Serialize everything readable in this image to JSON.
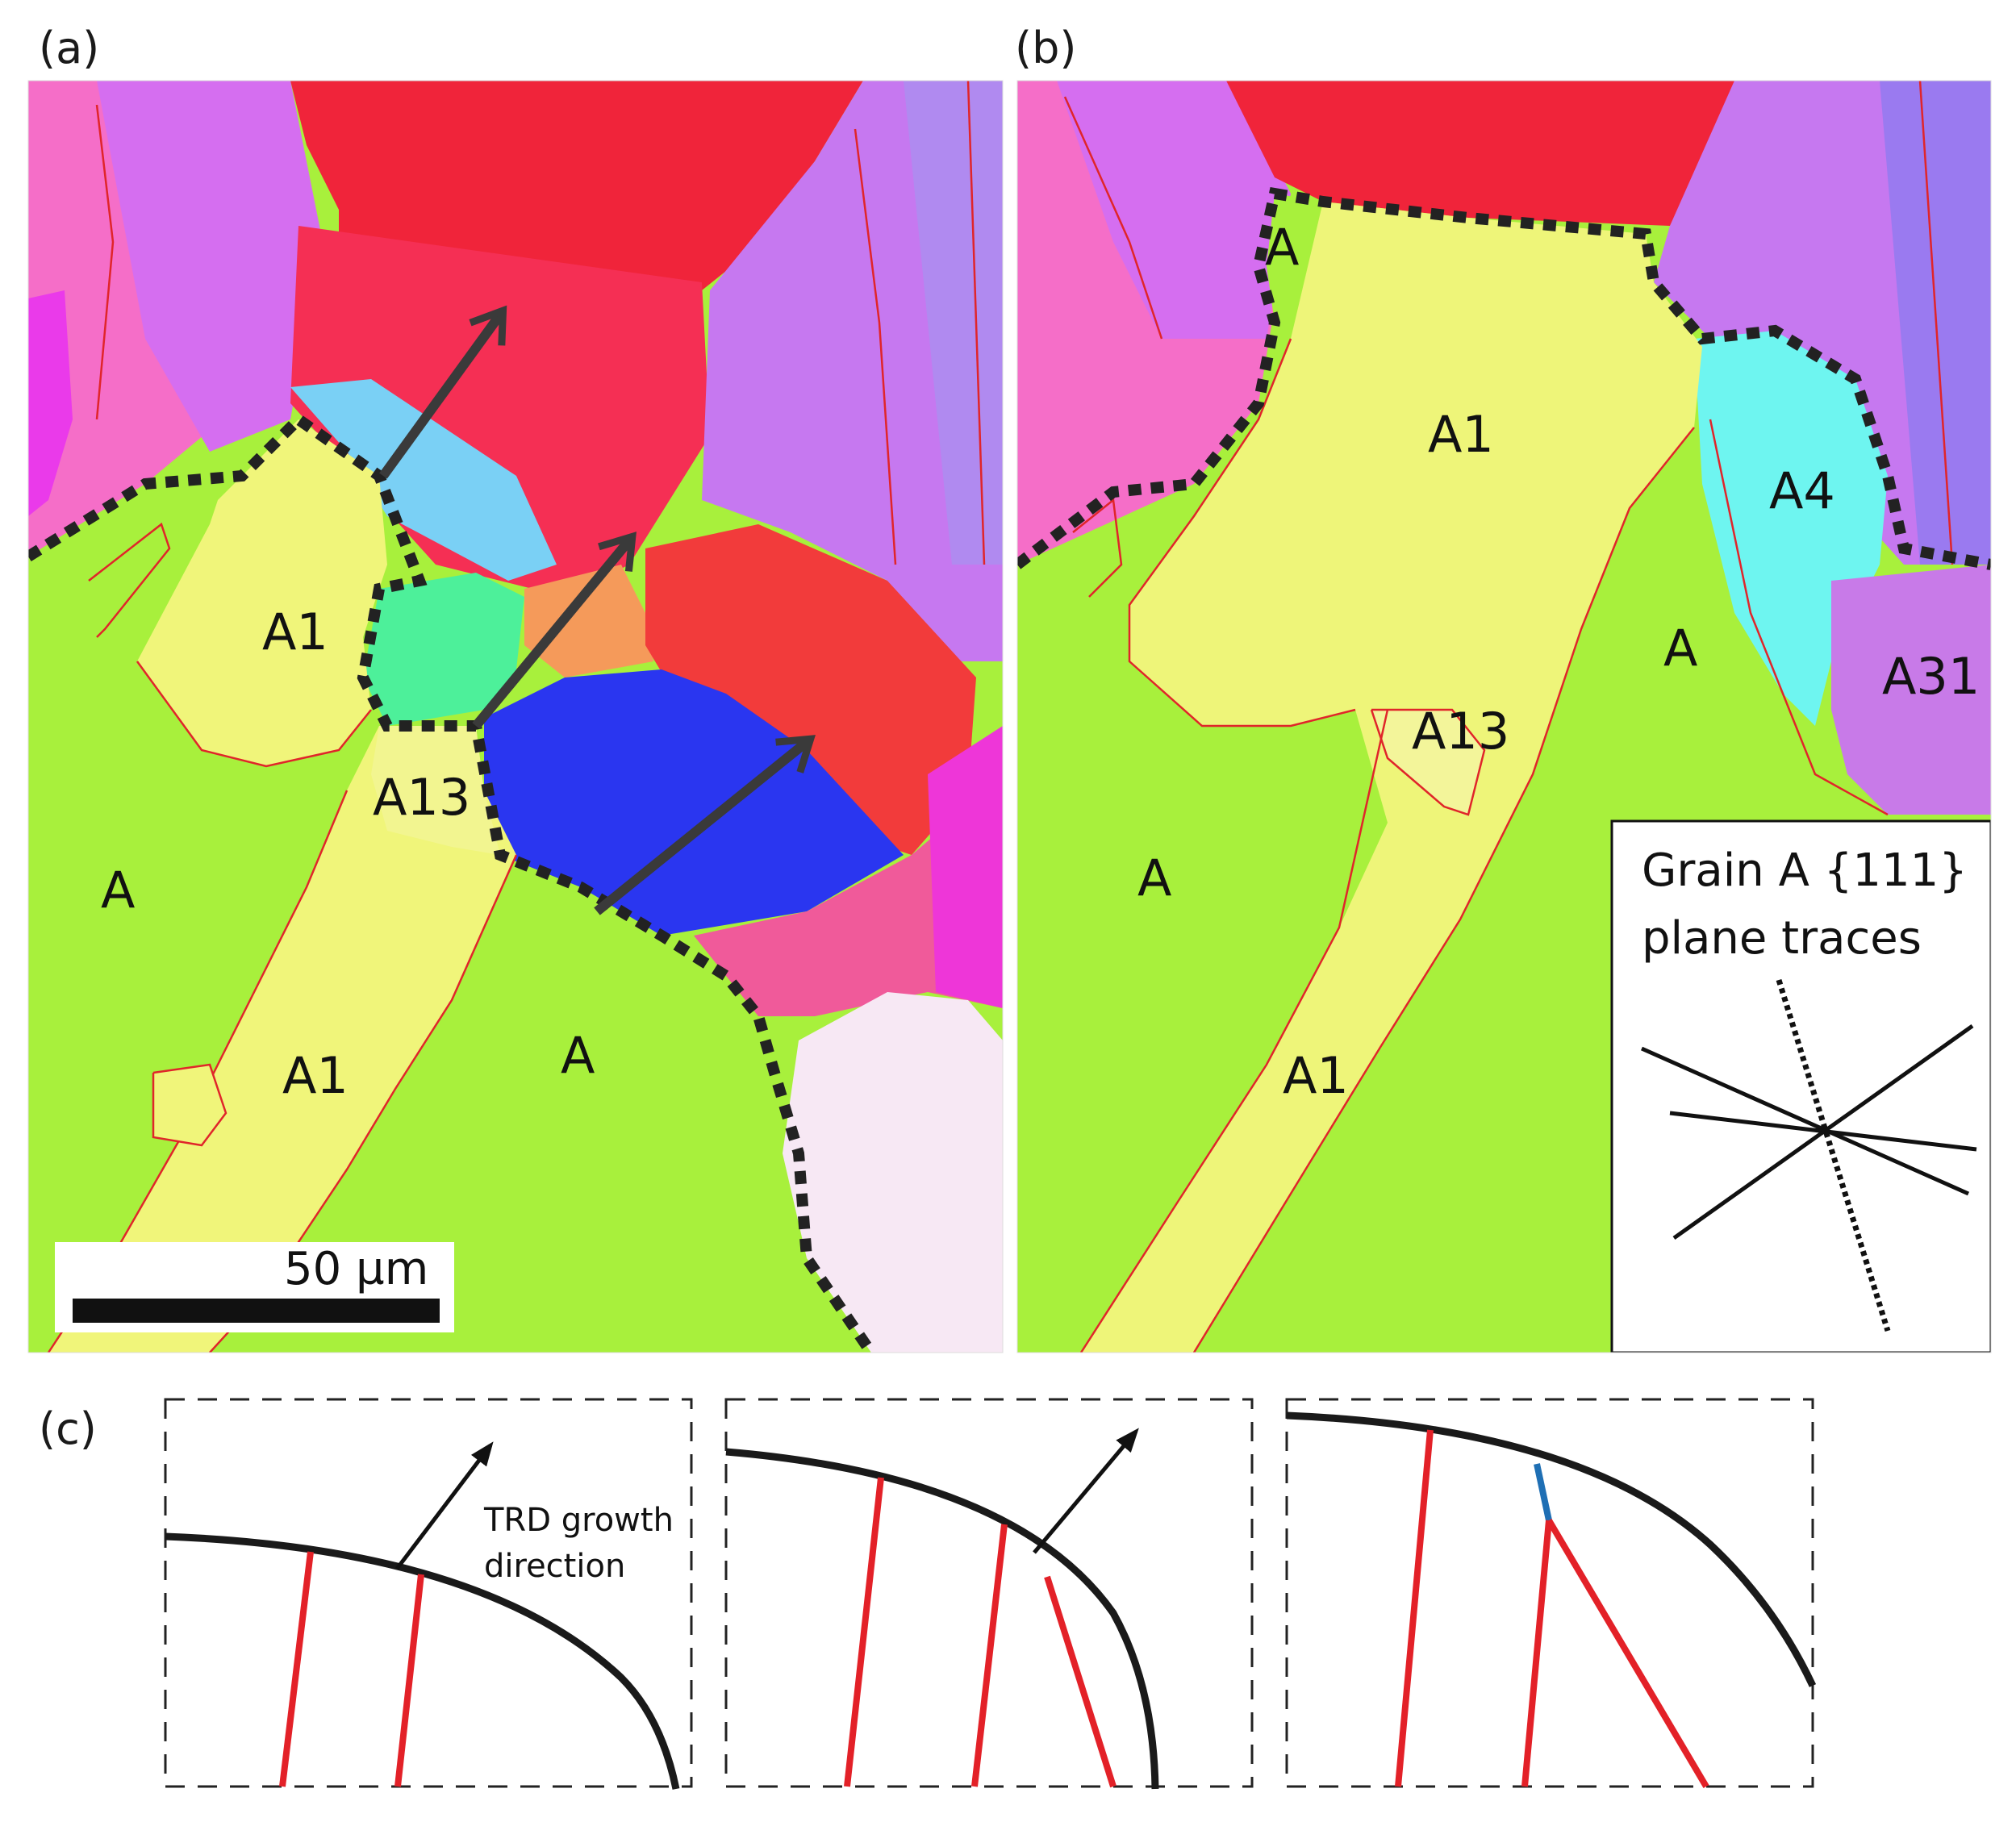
{
  "panels": {
    "a": {
      "letter": "(a)"
    },
    "b": {
      "letter": "(b)"
    },
    "c": {
      "letter": "(c)"
    }
  },
  "panel_a": {
    "labels": {
      "a1_top": "A1",
      "a13": "A13",
      "a_left": "A",
      "a1_bottom": "A1",
      "a_center": "A"
    },
    "scale_bar": {
      "label": "50 µm"
    }
  },
  "panel_b": {
    "labels": {
      "a_top": "A",
      "a1_top": "A1",
      "a4": "A4",
      "a_right": "A",
      "a31": "A31",
      "a13": "A13",
      "a_left": "A",
      "a1_bottom": "A1"
    },
    "inset": {
      "title_line1": "Grain A {111}",
      "title_line2": "plane traces"
    }
  },
  "panel_c": {
    "annotation_line1": "TRD growth",
    "annotation_line2": "direction"
  },
  "colors": {
    "lime": "#a8f03c",
    "yellow": "#f0f57a",
    "red": "#f0243a",
    "pink": "#f56ec8",
    "violet": "#c678f0",
    "blue": "#2a36f0",
    "cyan": "#6ee0f5",
    "twin_boundary": "#e0252a",
    "arrow": "#3a3a3a"
  }
}
